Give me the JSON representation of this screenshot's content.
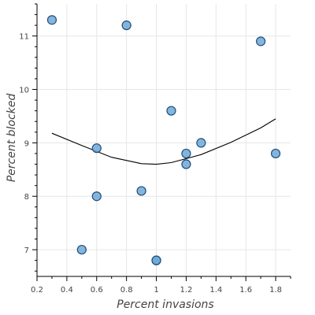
{
  "chart_data": {
    "type": "scatter",
    "xlabel": "Percent invasions",
    "ylabel": "Percent blocked",
    "xlim": [
      0.2,
      1.9
    ],
    "ylim": [
      6.5,
      11.6
    ],
    "x_ticks": [
      0.2,
      0.4,
      0.6,
      0.8,
      1.0,
      1.2,
      1.4,
      1.6,
      1.8
    ],
    "x_tick_labels": [
      "0.2",
      "0.4",
      "0.6",
      "0.8",
      "1",
      "1.2",
      "1.4",
      "1.6",
      "1.8"
    ],
    "y_ticks": [
      7,
      8,
      9,
      10,
      11
    ],
    "y_tick_labels": [
      "7",
      "8",
      "9",
      "10",
      "11"
    ],
    "grid": true,
    "points": [
      {
        "x": 0.3,
        "y": 11.3
      },
      {
        "x": 0.8,
        "y": 11.2
      },
      {
        "x": 1.7,
        "y": 10.9
      },
      {
        "x": 1.1,
        "y": 9.6
      },
      {
        "x": 1.3,
        "y": 9.0
      },
      {
        "x": 0.6,
        "y": 8.9
      },
      {
        "x": 1.2,
        "y": 8.8
      },
      {
        "x": 1.8,
        "y": 8.8
      },
      {
        "x": 1.2,
        "y": 8.6
      },
      {
        "x": 0.9,
        "y": 8.1
      },
      {
        "x": 0.6,
        "y": 8.0
      },
      {
        "x": 0.5,
        "y": 7.0
      },
      {
        "x": 1.0,
        "y": 6.8
      },
      {
        "x": 1.0,
        "y": 6.8
      }
    ],
    "fit_line": {
      "x": [
        0.3,
        0.5,
        0.7,
        0.9,
        1.0,
        1.1,
        1.3,
        1.5,
        1.7,
        1.8
      ],
      "y": [
        9.18,
        8.95,
        8.73,
        8.61,
        8.6,
        8.63,
        8.78,
        9.01,
        9.28,
        9.45
      ]
    },
    "colors": {
      "marker_fill": "#6fa8d6",
      "marker_stroke": "#1f4e79",
      "fit_line": "#000000",
      "grid": "#e6e6e6",
      "axis": "#000000"
    }
  }
}
